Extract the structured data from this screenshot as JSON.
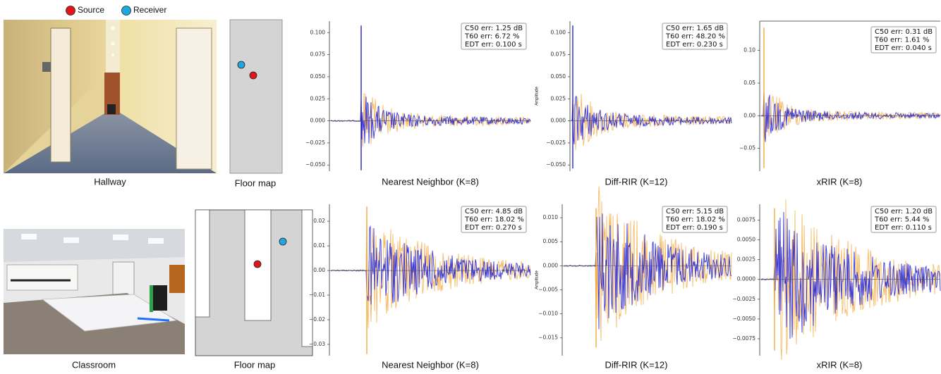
{
  "legend": [
    {
      "label": "Source",
      "color": "#e3151b"
    },
    {
      "label": "Receiver",
      "color": "#1fa8e0"
    }
  ],
  "colors": {
    "prediction": "#1515d6",
    "reference": "#f2a431"
  },
  "rows": [
    {
      "scene_caption": "Hallway",
      "map_caption": "Floor map",
      "plots": [
        {
          "title": "Nearest Neighbor (K=8)",
          "ylim": [
            -0.057,
            0.113
          ],
          "yticks": [
            {
              "value": -0.05,
              "label": "−0.050"
            },
            {
              "value": -0.025,
              "label": "−0.025"
            },
            {
              "value": 0,
              "label": "0.000"
            },
            0.025,
            {
              "value": 0.05,
              "label": "0.050"
            },
            0.075,
            {
              "value": 0.1,
              "label": "0.100"
            }
          ],
          "errors": [
            "C50 err: 1.25 dB",
            "T60 err: 6.72 %",
            "EDT err: 0.100 s"
          ]
        },
        {
          "title": "Diff-RIR (K=12)",
          "ylabel": "Amplitude",
          "ylim": [
            -0.057,
            0.113
          ],
          "yticks": [
            {
              "value": -0.05,
              "label": "−0.050"
            },
            {
              "value": -0.025,
              "label": "−0.025"
            },
            {
              "value": 0,
              "label": "0.000"
            },
            0.025,
            {
              "value": 0.05,
              "label": "0.050"
            },
            0.075,
            {
              "value": 0.1,
              "label": "0.100"
            }
          ],
          "errors": [
            "C50 err: 1.65 dB",
            "T60 err: 48.20 %",
            "EDT err: 0.230 s"
          ]
        },
        {
          "title": "xRIR (K=8)",
          "ylim": [
            -0.085,
            0.145
          ],
          "yticks": [
            {
              "value": -0.05,
              "label": "−0.05"
            },
            {
              "value": 0,
              "label": "0.00"
            },
            0.05,
            {
              "value": 0.1,
              "label": "0.10"
            }
          ],
          "errors": [
            "C50 err: 0.31 dB",
            "T60 err: 1.61 %",
            "EDT err: 0.040 s"
          ]
        }
      ]
    },
    {
      "scene_caption": "Classroom",
      "map_caption": "Floor map",
      "plots": [
        {
          "title": "Nearest Neighbor (K=8)",
          "ylim": [
            -0.0346,
            0.0269
          ],
          "yticks": [
            {
              "value": -0.03,
              "label": "−0.03"
            },
            {
              "value": -0.02,
              "label": "−0.02"
            },
            {
              "value": -0.01,
              "label": "−0.01"
            },
            {
              "value": 0,
              "label": "0.00"
            },
            0.01,
            0.02
          ],
          "errors": [
            "C50 err: 4.85 dB",
            "T60 err: 18.02 %",
            "EDT err: 0.270 s"
          ]
        },
        {
          "title": "Diff-RIR (K=12)",
          "ylabel": "Amplitude",
          "ylim": [
            -0.0187,
            0.0128
          ],
          "yticks": [
            {
              "value": -0.015,
              "label": "−0.015"
            },
            {
              "value": -0.01,
              "label": "−0.010"
            },
            {
              "value": -0.005,
              "label": "−0.005"
            },
            {
              "value": 0,
              "label": "0.000"
            },
            0.005,
            {
              "value": 0.01,
              "label": "0.010"
            }
          ],
          "errors": [
            "C50 err: 5.15 dB",
            "T60 err: 18.02 %",
            "EDT err: 0.190 s"
          ]
        },
        {
          "title": "xRIR (K=8)",
          "ylim": [
            -0.00964,
            0.0095
          ],
          "yticks": [
            {
              "value": -0.0075,
              "label": "−0.0075"
            },
            {
              "value": -0.005,
              "label": "−0.0050"
            },
            {
              "value": -0.0025,
              "label": "−0.0025"
            },
            {
              "value": 0,
              "label": "0.0000"
            },
            0.0025,
            {
              "value": 0.005,
              "label": "0.0050"
            },
            0.0075
          ],
          "errors": [
            "C50 err: 1.20 dB",
            "T60 err: 5.44 %",
            "EDT err: 0.110 s"
          ]
        }
      ]
    }
  ]
}
